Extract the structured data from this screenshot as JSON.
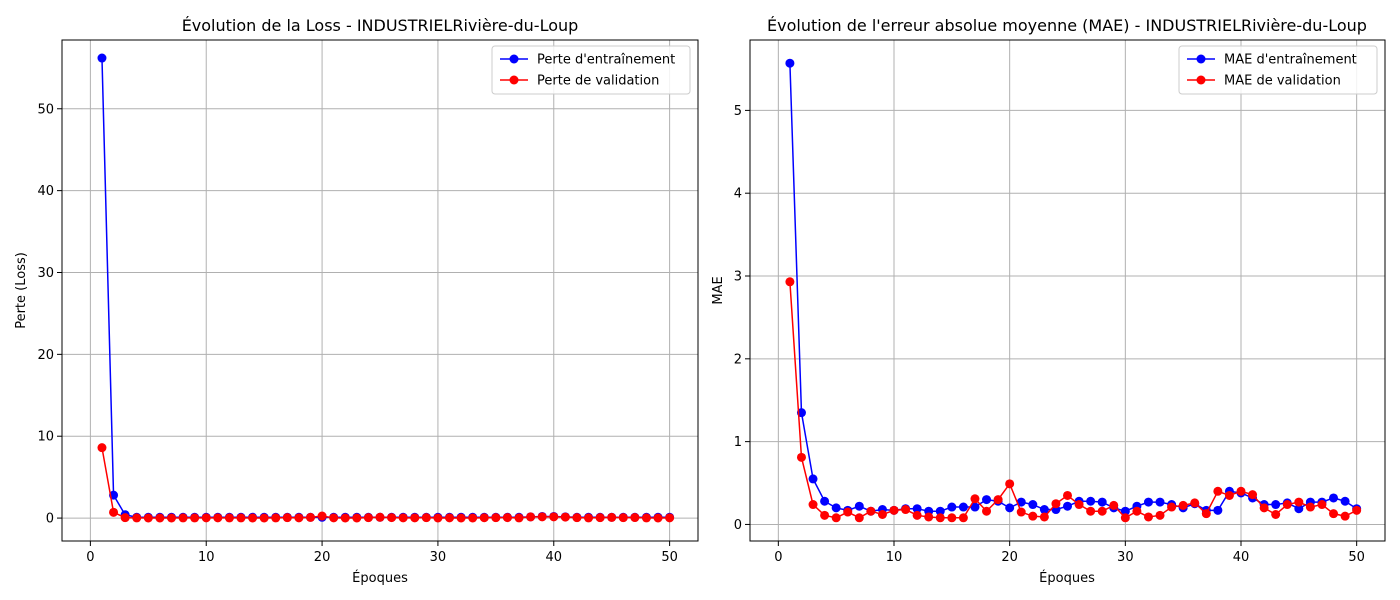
{
  "chart_data": [
    {
      "type": "line",
      "title": "Évolution de la Loss - INDUSTRIELRivière-du-Loup",
      "xlabel": "Époques",
      "ylabel": "Perte (Loss)",
      "xlim": [
        -2.45,
        52.45
      ],
      "ylim": [
        -2.8,
        58.4
      ],
      "xticks": [
        0,
        10,
        20,
        30,
        40,
        50
      ],
      "yticks": [
        0,
        10,
        20,
        30,
        40,
        50
      ],
      "grid": true,
      "legend": "top-right",
      "x": [
        1,
        2,
        3,
        4,
        5,
        6,
        7,
        8,
        9,
        10,
        11,
        12,
        13,
        14,
        15,
        16,
        17,
        18,
        19,
        20,
        21,
        22,
        23,
        24,
        25,
        26,
        27,
        28,
        29,
        30,
        31,
        32,
        33,
        34,
        35,
        36,
        37,
        38,
        39,
        40,
        41,
        42,
        43,
        44,
        45,
        46,
        47,
        48,
        49,
        50
      ],
      "series": [
        {
          "name": "Perte d'entraînement",
          "color": "#0000ff",
          "values": [
            56.2,
            2.8,
            0.4,
            0.1,
            0.1,
            0.1,
            0.1,
            0.1,
            0.1,
            0.1,
            0.1,
            0.1,
            0.1,
            0.1,
            0.1,
            0.1,
            0.1,
            0.1,
            0.1,
            0.1,
            0.1,
            0.1,
            0.1,
            0.1,
            0.1,
            0.1,
            0.1,
            0.1,
            0.1,
            0.1,
            0.1,
            0.1,
            0.1,
            0.1,
            0.1,
            0.1,
            0.1,
            0.15,
            0.2,
            0.2,
            0.15,
            0.1,
            0.1,
            0.1,
            0.1,
            0.1,
            0.1,
            0.1,
            0.1,
            0.1
          ]
        },
        {
          "name": "Perte de validation",
          "color": "#ff0000",
          "values": [
            8.6,
            0.7,
            0.05,
            0.02,
            0.01,
            0.01,
            0.01,
            0.02,
            0.02,
            0.03,
            0.03,
            0.02,
            0.02,
            0.01,
            0.01,
            0.02,
            0.05,
            0.03,
            0.08,
            0.25,
            0.03,
            0.01,
            0.01,
            0.05,
            0.1,
            0.06,
            0.03,
            0.03,
            0.05,
            0.01,
            0.03,
            0.01,
            0.01,
            0.04,
            0.05,
            0.06,
            0.02,
            0.14,
            0.15,
            0.15,
            0.12,
            0.05,
            0.02,
            0.05,
            0.08,
            0.05,
            0.07,
            0.02,
            0.01,
            0.03
          ]
        }
      ]
    },
    {
      "type": "line",
      "title": "Évolution de l'erreur absolue moyenne (MAE) - INDUSTRIELRivière-du-Loup",
      "xlabel": "Époques",
      "ylabel": "MAE",
      "xlim": [
        -2.45,
        52.45
      ],
      "ylim": [
        -0.2,
        5.85
      ],
      "xticks": [
        0,
        10,
        20,
        30,
        40,
        50
      ],
      "yticks": [
        0,
        1,
        2,
        3,
        4,
        5
      ],
      "grid": true,
      "legend": "top-right",
      "x": [
        1,
        2,
        3,
        4,
        5,
        6,
        7,
        8,
        9,
        10,
        11,
        12,
        13,
        14,
        15,
        16,
        17,
        18,
        19,
        20,
        21,
        22,
        23,
        24,
        25,
        26,
        27,
        28,
        29,
        30,
        31,
        32,
        33,
        34,
        35,
        36,
        37,
        38,
        39,
        40,
        41,
        42,
        43,
        44,
        45,
        46,
        47,
        48,
        49,
        50
      ],
      "series": [
        {
          "name": "MAE d'entraînement",
          "color": "#0000ff",
          "values": [
            5.57,
            1.35,
            0.55,
            0.28,
            0.2,
            0.17,
            0.22,
            0.16,
            0.18,
            0.17,
            0.19,
            0.19,
            0.16,
            0.16,
            0.21,
            0.21,
            0.21,
            0.3,
            0.28,
            0.2,
            0.27,
            0.24,
            0.18,
            0.18,
            0.22,
            0.28,
            0.28,
            0.27,
            0.2,
            0.16,
            0.22,
            0.27,
            0.27,
            0.24,
            0.2,
            0.25,
            0.17,
            0.17,
            0.4,
            0.38,
            0.32,
            0.24,
            0.24,
            0.26,
            0.19,
            0.27,
            0.27,
            0.32,
            0.28,
            0.19
          ]
        },
        {
          "name": "MAE de validation",
          "color": "#ff0000",
          "values": [
            2.93,
            0.81,
            0.24,
            0.11,
            0.08,
            0.15,
            0.08,
            0.16,
            0.12,
            0.17,
            0.18,
            0.11,
            0.09,
            0.08,
            0.08,
            0.08,
            0.31,
            0.16,
            0.3,
            0.49,
            0.15,
            0.1,
            0.09,
            0.25,
            0.35,
            0.24,
            0.16,
            0.16,
            0.23,
            0.08,
            0.16,
            0.09,
            0.11,
            0.21,
            0.23,
            0.26,
            0.13,
            0.4,
            0.35,
            0.4,
            0.36,
            0.2,
            0.12,
            0.24,
            0.27,
            0.21,
            0.24,
            0.13,
            0.1,
            0.17
          ]
        }
      ]
    }
  ]
}
